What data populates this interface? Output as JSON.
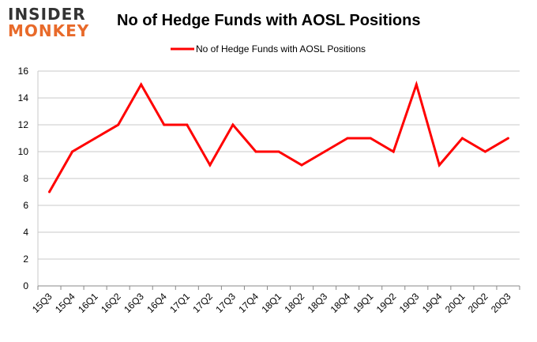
{
  "logo": {
    "line1": "INSIDER",
    "line2": "MONKEY"
  },
  "colors": {
    "series": "#ff0000",
    "grid": "#c8c8c8",
    "axis": "#000000",
    "logo_accent": "#e86a2a"
  },
  "chart_data": {
    "type": "line",
    "title": "No of Hedge Funds with AOSL Positions",
    "xlabel": "",
    "ylabel": "",
    "ylim": [
      0,
      16
    ],
    "yticks": [
      0,
      2,
      4,
      6,
      8,
      10,
      12,
      14,
      16
    ],
    "grid": true,
    "legend_position": "top-center",
    "categories": [
      "15Q3",
      "15Q4",
      "16Q1",
      "16Q2",
      "16Q3",
      "16Q4",
      "17Q1",
      "17Q2",
      "17Q3",
      "17Q4",
      "18Q1",
      "18Q2",
      "18Q3",
      "18Q4",
      "19Q1",
      "19Q2",
      "19Q3",
      "19Q4",
      "20Q1",
      "20Q2",
      "20Q3"
    ],
    "series": [
      {
        "name": "No of Hedge Funds with AOSL Positions",
        "values": [
          7,
          10,
          11,
          12,
          15,
          12,
          12,
          9,
          12,
          10,
          10,
          9,
          10,
          11,
          11,
          10,
          15,
          9,
          11,
          10,
          11
        ]
      }
    ]
  }
}
